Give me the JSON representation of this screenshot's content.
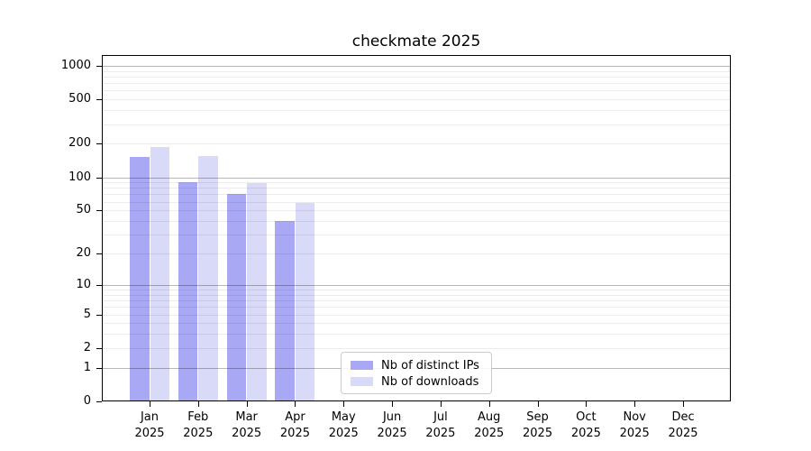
{
  "title": "checkmate 2025",
  "chart_data": {
    "type": "bar",
    "title": "checkmate 2025",
    "categories": [
      "Jan",
      "Feb",
      "Mar",
      "Apr",
      "May",
      "Jun",
      "Jul",
      "Aug",
      "Sep",
      "Oct",
      "Nov",
      "Dec"
    ],
    "x_tick_second_line": "2025",
    "series": [
      {
        "name": "Nb of distinct IPs",
        "color": "#a8a8f5",
        "values": [
          151,
          91,
          71,
          40,
          null,
          null,
          null,
          null,
          null,
          null,
          null,
          null
        ]
      },
      {
        "name": "Nb of downloads",
        "color": "#d9d9f8",
        "values": [
          186,
          155,
          88,
          59,
          null,
          null,
          null,
          null,
          null,
          null,
          null,
          null
        ]
      }
    ],
    "yscale": "symlog-log1p",
    "ylim": [
      0,
      1250
    ],
    "yticks": [
      0,
      1,
      2,
      5,
      10,
      20,
      50,
      100,
      200,
      500,
      1000
    ],
    "major_gridlines": [
      1,
      10,
      100,
      1000
    ],
    "minor_gridlines": [
      2,
      3,
      4,
      5,
      6,
      7,
      8,
      9,
      20,
      30,
      40,
      50,
      60,
      70,
      80,
      90,
      200,
      300,
      400,
      500,
      600,
      700,
      800,
      900
    ],
    "grid": "horizontal, major darker + minor lighter, drawn over bars",
    "legend_position": "inside bottom, left of center",
    "axis_color": "#000000",
    "major_grid_color": "#b8b8b8",
    "minor_grid_color": "#ececec"
  }
}
